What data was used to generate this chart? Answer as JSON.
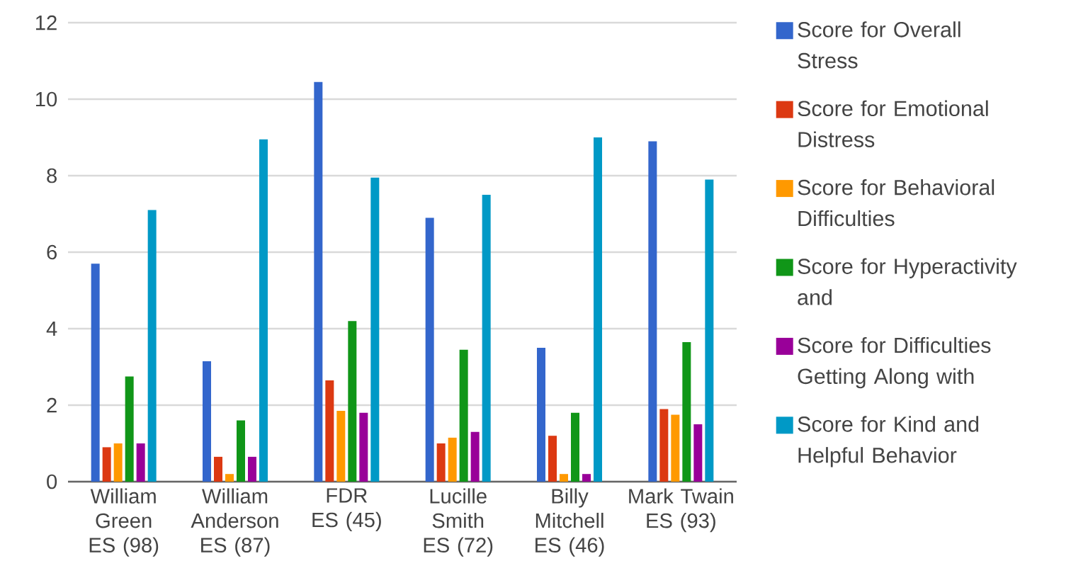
{
  "chart_data": {
    "type": "bar",
    "categories": [
      "William Green ES (98)",
      "William Anderson ES (87)",
      "FDR ES (45)",
      "Lucille Smith ES (72)",
      "Billy Mitchell ES (46)",
      "Mark Twain ES (93)"
    ],
    "series": [
      {
        "name": "Score for Overall Stress",
        "color": "#3366cc",
        "values": [
          5.7,
          3.15,
          10.45,
          6.9,
          3.5,
          8.9
        ]
      },
      {
        "name": "Score for Emotional Distress",
        "color": "#dc3912",
        "values": [
          0.9,
          0.65,
          2.65,
          1.0,
          1.2,
          1.9
        ]
      },
      {
        "name": "Score for Behavioral Difficulties",
        "color": "#ff9900",
        "values": [
          1.0,
          0.2,
          1.85,
          1.15,
          0.2,
          1.75
        ]
      },
      {
        "name": "Score for Hyperactivity and",
        "color": "#109618",
        "values": [
          2.75,
          1.6,
          4.2,
          3.45,
          1.8,
          3.65
        ]
      },
      {
        "name": "Score for Difficulties Getting Along with",
        "color": "#990099",
        "values": [
          1.0,
          0.65,
          1.8,
          1.3,
          0.2,
          1.5
        ]
      },
      {
        "name": "Score for Kind and Helpful Behavior",
        "color": "#0099c6",
        "values": [
          7.1,
          8.95,
          7.95,
          7.5,
          9.0,
          7.9
        ]
      }
    ],
    "ylim": [
      0,
      12
    ],
    "yticks": [
      0,
      2,
      4,
      6,
      8,
      10,
      12
    ],
    "grid": "y",
    "legend": "right"
  }
}
